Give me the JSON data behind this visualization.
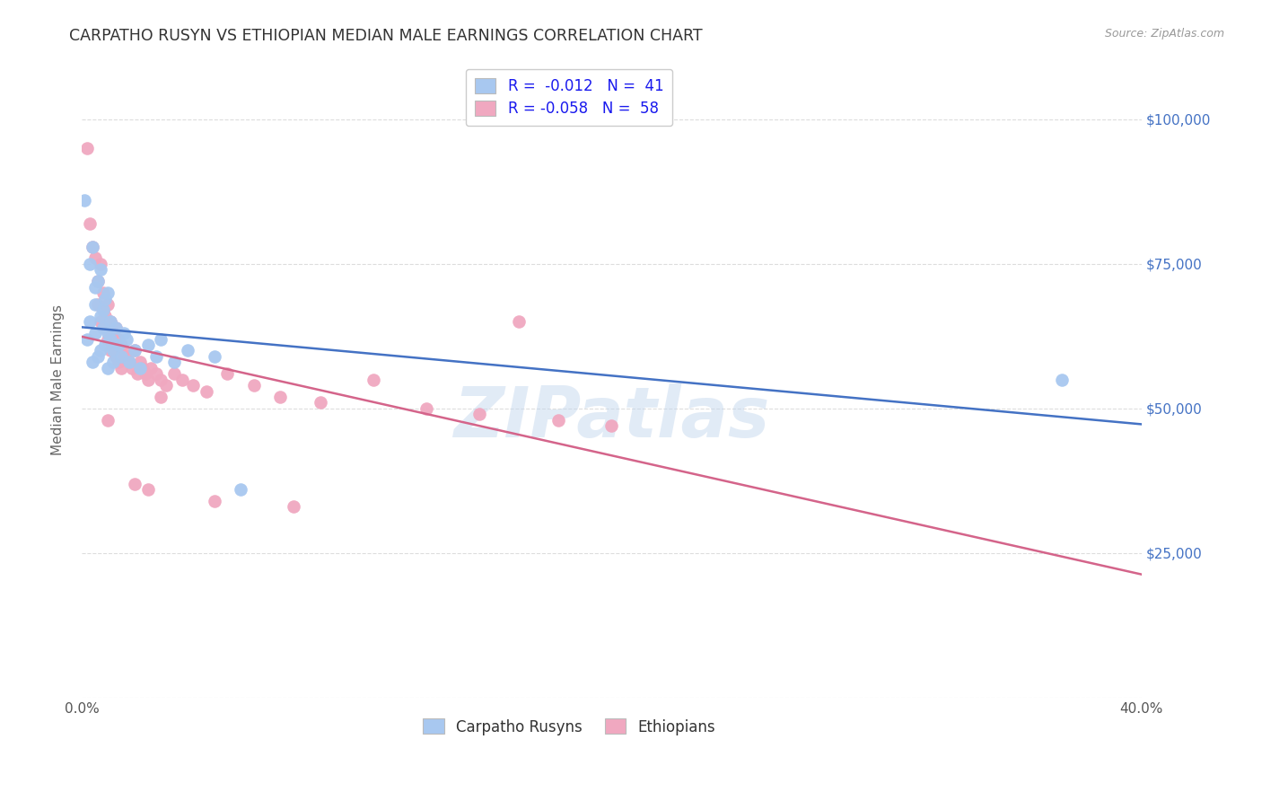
{
  "title": "CARPATHO RUSYN VS ETHIOPIAN MEDIAN MALE EARNINGS CORRELATION CHART",
  "source": "Source: ZipAtlas.com",
  "ylabel": "Median Male Earnings",
  "xlim": [
    0,
    0.4
  ],
  "ylim": [
    0,
    110000
  ],
  "yticks": [
    0,
    25000,
    50000,
    75000,
    100000
  ],
  "ytick_labels": [
    "",
    "$25,000",
    "$50,000",
    "$75,000",
    "$100,000"
  ],
  "xticks": [
    0.0,
    0.05,
    0.1,
    0.15,
    0.2,
    0.25,
    0.3,
    0.35,
    0.4
  ],
  "xtick_labels": [
    "0.0%",
    "",
    "",
    "",
    "",
    "",
    "",
    "",
    "40.0%"
  ],
  "legend_r1": "-0.012",
  "legend_n1": "41",
  "legend_r2": "-0.058",
  "legend_n2": "58",
  "color_rusyn": "#a8c8f0",
  "color_ethiopian": "#f0a8c0",
  "color_line_rusyn": "#4472c4",
  "color_line_ethiopian": "#d4648a",
  "color_ytick_labels": "#4472c4",
  "watermark": "ZIPatlas",
  "background_color": "#ffffff",
  "grid_color": "#dddddd",
  "carpatho_rusyn_x": [
    0.001,
    0.002,
    0.003,
    0.003,
    0.004,
    0.004,
    0.005,
    0.005,
    0.005,
    0.006,
    0.006,
    0.007,
    0.007,
    0.007,
    0.008,
    0.008,
    0.009,
    0.009,
    0.01,
    0.01,
    0.01,
    0.011,
    0.011,
    0.012,
    0.012,
    0.013,
    0.014,
    0.015,
    0.016,
    0.017,
    0.018,
    0.02,
    0.022,
    0.025,
    0.028,
    0.03,
    0.035,
    0.04,
    0.05,
    0.06,
    0.37
  ],
  "carpatho_rusyn_y": [
    86000,
    62000,
    75000,
    65000,
    78000,
    58000,
    71000,
    63000,
    68000,
    72000,
    59000,
    74000,
    66000,
    60000,
    64000,
    67000,
    61000,
    69000,
    63000,
    57000,
    70000,
    62000,
    65000,
    60000,
    58000,
    64000,
    61000,
    59000,
    63000,
    62000,
    58000,
    60000,
    57000,
    61000,
    59000,
    62000,
    58000,
    60000,
    59000,
    36000,
    55000
  ],
  "ethiopian_x": [
    0.002,
    0.003,
    0.004,
    0.005,
    0.006,
    0.006,
    0.007,
    0.007,
    0.008,
    0.008,
    0.009,
    0.009,
    0.01,
    0.01,
    0.011,
    0.011,
    0.012,
    0.012,
    0.013,
    0.013,
    0.014,
    0.014,
    0.015,
    0.015,
    0.016,
    0.017,
    0.018,
    0.019,
    0.02,
    0.021,
    0.022,
    0.023,
    0.024,
    0.025,
    0.026,
    0.028,
    0.03,
    0.032,
    0.035,
    0.038,
    0.042,
    0.047,
    0.055,
    0.065,
    0.075,
    0.09,
    0.11,
    0.13,
    0.15,
    0.165,
    0.18,
    0.2,
    0.02,
    0.025,
    0.03,
    0.05,
    0.08,
    0.01
  ],
  "ethiopian_y": [
    95000,
    82000,
    78000,
    76000,
    72000,
    68000,
    75000,
    65000,
    70000,
    67000,
    66000,
    64000,
    68000,
    62000,
    65000,
    60000,
    63000,
    61000,
    64000,
    59000,
    62000,
    58000,
    61000,
    57000,
    60000,
    59000,
    58000,
    57000,
    60000,
    56000,
    58000,
    57000,
    56000,
    55000,
    57000,
    56000,
    55000,
    54000,
    56000,
    55000,
    54000,
    53000,
    56000,
    54000,
    52000,
    51000,
    55000,
    50000,
    49000,
    65000,
    48000,
    47000,
    37000,
    36000,
    52000,
    34000,
    33000,
    48000
  ]
}
